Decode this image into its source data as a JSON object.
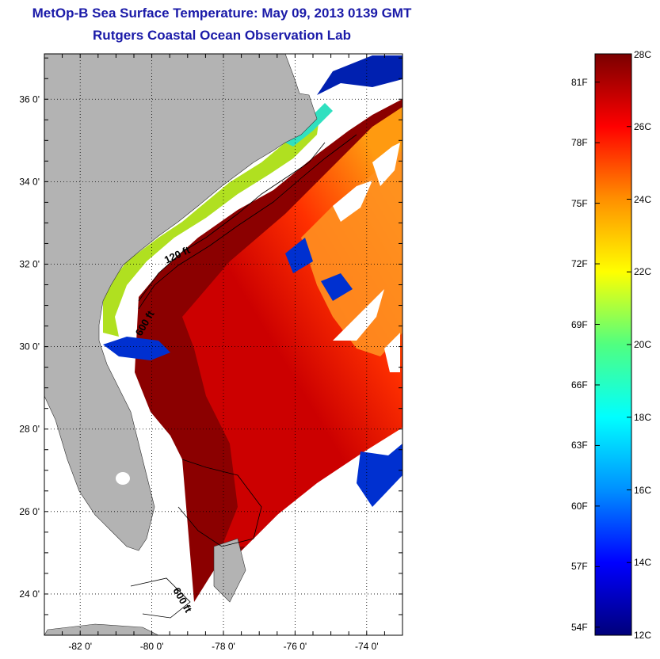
{
  "title": "MetOp-B Sea Surface Temperature:  May 09, 2013 0139 GMT",
  "subtitle": "Rutgers Coastal Ocean Observation Lab",
  "map": {
    "lon_ticks": [
      "-82 0'",
      "-80 0'",
      "-78 0'",
      "-76 0'",
      "-74 0'"
    ],
    "lon_values": [
      -82,
      -80,
      -78,
      -76,
      -74
    ],
    "lat_ticks": [
      "36 0'",
      "34 0'",
      "32 0'",
      "30 0'",
      "28 0'",
      "26 0'",
      "24 0'"
    ],
    "lat_values": [
      36,
      34,
      32,
      30,
      28,
      26,
      24
    ],
    "lon_range": [
      -83,
      -73
    ],
    "lat_range": [
      23,
      37.1
    ],
    "grid": "dotted",
    "contours": [
      {
        "label": "120 ft"
      },
      {
        "label": "600 ft"
      },
      {
        "label": "600 ft"
      }
    ],
    "colors": {
      "land": "#b3b3b3",
      "warm_water": "#8b0000",
      "gulf_stream": "#e01000",
      "shelf": "#ff8c00",
      "cold_water": "#0020b0",
      "no_data": "#ffffff"
    }
  },
  "colorbar": {
    "celsius_labels": [
      "28C",
      "26C",
      "24C",
      "22C",
      "20C",
      "18C",
      "16C",
      "14C",
      "12C"
    ],
    "celsius_values": [
      28,
      26,
      24,
      22,
      20,
      18,
      16,
      14,
      12
    ],
    "fahrenheit_labels": [
      "81F",
      "78F",
      "75F",
      "72F",
      "69F",
      "66F",
      "63F",
      "60F",
      "57F",
      "54F"
    ],
    "fahrenheit_values": [
      81,
      78,
      75,
      72,
      69,
      66,
      63,
      60,
      57,
      54
    ],
    "range_c": [
      12,
      28
    ],
    "colormap": [
      "#00007a",
      "#0000ff",
      "#0090ff",
      "#00ffff",
      "#50ff80",
      "#ffff00",
      "#ff9000",
      "#ff0000",
      "#7a0000"
    ]
  }
}
